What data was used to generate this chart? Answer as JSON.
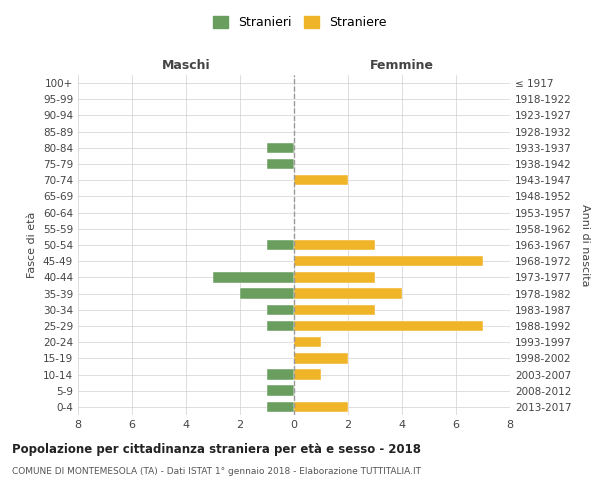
{
  "age_groups": [
    "0-4",
    "5-9",
    "10-14",
    "15-19",
    "20-24",
    "25-29",
    "30-34",
    "35-39",
    "40-44",
    "45-49",
    "50-54",
    "55-59",
    "60-64",
    "65-69",
    "70-74",
    "75-79",
    "80-84",
    "85-89",
    "90-94",
    "95-99",
    "100+"
  ],
  "birth_years": [
    "2013-2017",
    "2008-2012",
    "2003-2007",
    "1998-2002",
    "1993-1997",
    "1988-1992",
    "1983-1987",
    "1978-1982",
    "1973-1977",
    "1968-1972",
    "1963-1967",
    "1958-1962",
    "1953-1957",
    "1948-1952",
    "1943-1947",
    "1938-1942",
    "1933-1937",
    "1928-1932",
    "1923-1927",
    "1918-1922",
    "≤ 1917"
  ],
  "males": [
    1,
    1,
    1,
    0,
    0,
    1,
    1,
    2,
    3,
    0,
    1,
    0,
    0,
    0,
    0,
    1,
    1,
    0,
    0,
    0,
    0
  ],
  "females": [
    2,
    0,
    1,
    2,
    1,
    7,
    3,
    4,
    3,
    7,
    3,
    0,
    0,
    0,
    2,
    0,
    0,
    0,
    0,
    0,
    0
  ],
  "male_color": "#6a9e5e",
  "female_color": "#f0b429",
  "title": "Popolazione per cittadinanza straniera per età e sesso - 2018",
  "subtitle": "COMUNE DI MONTEMESOLA (TA) - Dati ISTAT 1° gennaio 2018 - Elaborazione TUTTITALIA.IT",
  "xlabel_left": "Maschi",
  "xlabel_right": "Femmine",
  "ylabel_left": "Fasce di età",
  "ylabel_right": "Anni di nascita",
  "legend_male": "Stranieri",
  "legend_female": "Straniere",
  "xlim": 8,
  "background_color": "#ffffff",
  "grid_color": "#d0d0d0"
}
